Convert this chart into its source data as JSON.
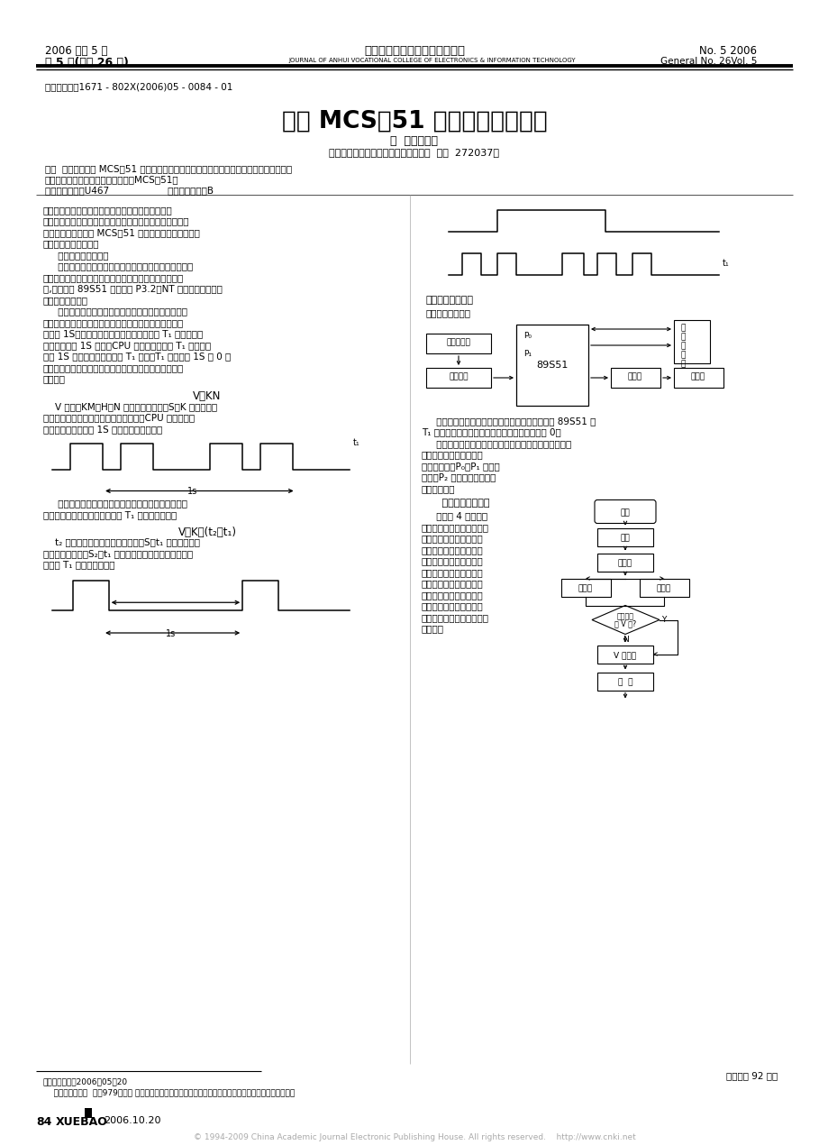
{
  "bg_color": "#ffffff",
  "header_line1_left": "2006 年第 5 期",
  "header_line1_center": "安徽电子信息职业技术学院学报",
  "header_line1_right": "No. 5 2006",
  "header_line2_left": "第 5 卷(总第 26 期)",
  "header_line2_center": "JOURNAL OF ANHUI VOCATIONAL COLLEGE OF ELECTRONICS & INFORMATION TECHNOLOGY",
  "header_line2_right": "General No. 26Vol. 5",
  "article_id": "［文章编号］1671 - 802X(2006)05 - 0084 - 01",
  "title": "基于 MCS－51 的车速检测显示仪",
  "authors": "南  楠，房亚民",
  "affiliation": "（济宁职业技术学院机电工程系，山东  济宁  272037）",
  "abstract_line1": "［摘  要］讨论基于 MCS－51 车速显示仪的工作原理及硬件结构、软件流程，介绍其功能。",
  "abstract_line2": "［关键词］车速；显示仪；单片机（MCS－51）",
  "abstract_line3": "［中图分类号］U467                    ［文献标识码］B",
  "formula1": "V＝KN",
  "formula2": "V＝K／(t₂－t₁)",
  "footnote1": "＊［收稿日期］2006－05－20",
  "footnote2": "    ［作者简介］南  楠（979－）女 山东济宁人，学士，主要从事自动控制、单片机、仪器仪表的教学与研究。",
  "page_number": "84",
  "journal_abbr": "XUEBAO",
  "date_pub": "2006.10.20",
  "col2_transfer": "（下转第 92 页）",
  "copyright": "© 1994-2009 China Academic Journal Electronic Publishing House. All rights reserved.    http://www.cnki.net",
  "col1_lines": [
    "我国的车辆生产起步晚，技术相对落后，要赶超欧美",
    "等国，必须吸收先进技术，研发高新技术，提高性能和市场",
    "竞争能力。本文利用 MCS－51 在车辆智能监测及显示方",
    "面作了一些实用设计。",
    "     一、系统的工作原理",
    "     目前，测速的传感器有电磁式、磁性形式、光电式、霍",
    "尔式。不论哪一种传感器都以脉冲的形式向外输出转速信",
    "号,此信号由 89S51 的输入端 P3.2（NT 输入）按车速状况",
    "采用不同的算法。",
    "     当被测车速很高时，采用频率法进行测量。即累计单",
    "位时间内脉冲的个数，从而计算出此时刻车速。测速采样",
    "时间为 1S，传感器每送来一个脉冲，计数器 T₁ 自动加一，",
    "软件定时器每 1S 中断，CPU 响应后立刻读取 T₁ 中的数值",
    "（即 1S 的脉冲数），随即将 T₁ 清零，T₁ 在下一个 1S 从 0 开",
    "始累计传感器送来的脉冲数，可由程序以下面的式子计算",
    "出车速："
  ],
  "formula1_note": [
    "    V 车速，KM／H；N 为脉冲个数，个／S；K 常数，它由",
    "传感器特性和车轮转速共同决定。最后，CPU 把运算后结",
    "果送显示器显示，每 1S 更新一次。如下图："
  ],
  "mid_lines": [
    "     当车速低时，采用周期法测量，即测量两个脉冲之间",
    "的时间间隔，进而计算车速。由 T₁ 提供时间基准。"
  ],
  "f2_note": [
    "    t₂ 为本次脉冲到来时刻相对时间，S；t₁ 为本次脉冲到",
    "来时刻相对时间（S₂－t₁ 为两次脉冲之间的时间间隔。以",
    "上，由 T₁ 读取。如下图："
  ],
  "sensor_lines": [
    "     传感器的脉冲信号经过去抖动和干扰抑制后，由 89S51 的",
    "T₁ 输入，显示器由串行口读取数据，工作方式为 0。",
    "     闪速存储器用于储存一次行车中出现的最高速度和一些",
    "特殊参数，供车维护和故",
    "障分析使用。P₀、P₁ 为地址",
    "总线；P₂ 为数据总线，访问",
    "闪速存储器。"
  ],
  "sec3_body": [
    "     系统由 4 个模块组",
    "成：测试模块、运算模块、",
    "显示模块和存储模块。测",
    "试模块中包含多个中断处",
    "理程序。运算模块根据测",
    "试方法的类别计算车速，",
    "该模块包括数值转换子程",
    "序和四则运算子程序。显",
    "示模块动态扫描显示测量",
    "速，小数点可浮动，程序流",
    "程如下："
  ]
}
